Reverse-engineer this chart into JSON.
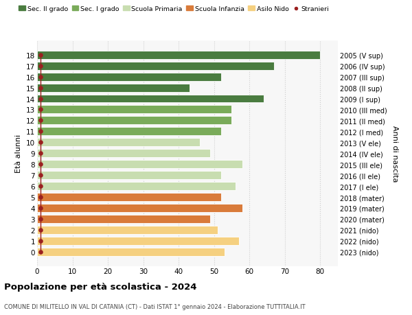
{
  "ages": [
    18,
    17,
    16,
    15,
    14,
    13,
    12,
    11,
    10,
    9,
    8,
    7,
    6,
    5,
    4,
    3,
    2,
    1,
    0
  ],
  "years": [
    "2005 (V sup)",
    "2006 (IV sup)",
    "2007 (III sup)",
    "2008 (II sup)",
    "2009 (I sup)",
    "2010 (III med)",
    "2011 (II med)",
    "2012 (I med)",
    "2013 (V ele)",
    "2014 (IV ele)",
    "2015 (III ele)",
    "2016 (II ele)",
    "2017 (I ele)",
    "2018 (mater)",
    "2019 (mater)",
    "2020 (mater)",
    "2021 (nido)",
    "2022 (nido)",
    "2023 (nido)"
  ],
  "values": [
    80,
    67,
    52,
    43,
    64,
    55,
    55,
    52,
    46,
    49,
    58,
    52,
    56,
    52,
    58,
    49,
    51,
    57,
    53
  ],
  "stranieri_x": [
    1,
    1,
    1,
    1,
    1,
    1,
    1,
    1,
    1,
    1,
    1,
    1,
    1,
    1,
    1,
    1,
    1,
    1,
    1
  ],
  "colors": [
    "#4a7c40",
    "#4a7c40",
    "#4a7c40",
    "#4a7c40",
    "#4a7c40",
    "#7aab5a",
    "#7aab5a",
    "#7aab5a",
    "#c8ddb0",
    "#c8ddb0",
    "#c8ddb0",
    "#c8ddb0",
    "#c8ddb0",
    "#d97b3a",
    "#d97b3a",
    "#d97b3a",
    "#f5d080",
    "#f5d080",
    "#f5d080"
  ],
  "legend_labels": [
    "Sec. II grado",
    "Sec. I grado",
    "Scuola Primaria",
    "Scuola Infanzia",
    "Asilo Nido",
    "Stranieri"
  ],
  "legend_colors": [
    "#4a7c40",
    "#7aab5a",
    "#c8ddb0",
    "#d97b3a",
    "#f5d080",
    "#9b2020"
  ],
  "stranieri_color": "#9b2020",
  "title": "Popolazione per età scolastica - 2024",
  "subtitle": "COMUNE DI MILITELLO IN VAL DI CATANIA (CT) - Dati ISTAT 1° gennaio 2024 - Elaborazione TUTTITALIA.IT",
  "ylabel": "Età alunni",
  "ylabel_right": "Anni di nascita",
  "xlim": [
    0,
    85
  ],
  "xticks": [
    0,
    10,
    20,
    30,
    40,
    50,
    60,
    70,
    80
  ],
  "background_color": "#ffffff",
  "plot_bg": "#f7f7f7",
  "grid_color": "#cccccc",
  "bar_height": 0.75
}
